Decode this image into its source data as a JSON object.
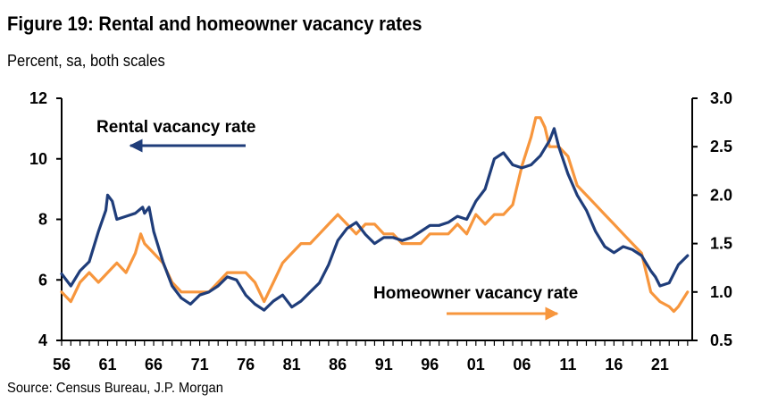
{
  "title": "Figure 19: Rental and homeowner vacancy rates",
  "subtitle": "Percent, sa, both scales",
  "source": "Source: Census Bureau, J.P. Morgan",
  "colors": {
    "rental": "#1f3d7a",
    "homeowner": "#f7963d"
  },
  "chart_data": {
    "type": "line",
    "title": "Figure 19: Rental and homeowner vacancy rates",
    "subtitle": "Percent, sa, both scales",
    "x_tick_labels": [
      "56",
      "61",
      "66",
      "71",
      "76",
      "81",
      "86",
      "91",
      "96",
      "01",
      "06",
      "11",
      "16",
      "21"
    ],
    "x_tick_years": [
      1956,
      1961,
      1966,
      1971,
      1976,
      1981,
      1986,
      1991,
      1996,
      2001,
      2006,
      2011,
      2016,
      2021
    ],
    "xlim": [
      1956,
      2024.5
    ],
    "y_left": {
      "lim": [
        4,
        12
      ],
      "ticks": [
        4,
        6,
        8,
        10,
        12
      ]
    },
    "y_right": {
      "lim": [
        0.5,
        3.0
      ],
      "ticks": [
        "0.5",
        "1.0",
        "1.5",
        "2.0",
        "2.5",
        "3.0"
      ]
    },
    "annotations": [
      {
        "text": "Rental vacancy rate",
        "series": "Rental vacancy rate",
        "arrow": "left"
      },
      {
        "text": "Homeowner vacancy rate",
        "series": "Homeowner vacancy rate",
        "arrow": "right"
      }
    ],
    "series": [
      {
        "name": "Rental vacancy rate",
        "axis": "left",
        "x": [
          1956,
          1957,
          1958,
          1959,
          1960,
          1960.8,
          1961,
          1961.5,
          1962,
          1963,
          1964,
          1964.8,
          1965,
          1965.5,
          1966,
          1967,
          1968,
          1969,
          1970,
          1971,
          1972,
          1973,
          1974,
          1975,
          1976,
          1977,
          1978,
          1979,
          1980,
          1981,
          1982,
          1983,
          1984,
          1985,
          1986,
          1987,
          1988,
          1989,
          1990,
          1991,
          1992,
          1993,
          1994,
          1995,
          1996,
          1997,
          1998,
          1999,
          2000,
          2001,
          2002,
          2003,
          2004,
          2005,
          2006,
          2007,
          2008,
          2009,
          2009.5,
          2010,
          2011,
          2012,
          2013,
          2014,
          2015,
          2016,
          2017,
          2018,
          2019,
          2020,
          2020.5,
          2021,
          2022,
          2023,
          2024
        ],
        "values": [
          6.2,
          5.8,
          6.3,
          6.6,
          7.6,
          8.3,
          8.8,
          8.6,
          8.0,
          8.1,
          8.2,
          8.4,
          8.2,
          8.4,
          7.6,
          6.6,
          5.8,
          5.4,
          5.2,
          5.5,
          5.6,
          5.8,
          6.1,
          6.0,
          5.5,
          5.2,
          5.0,
          5.3,
          5.5,
          5.1,
          5.3,
          5.6,
          5.9,
          6.5,
          7.3,
          7.7,
          7.9,
          7.5,
          7.2,
          7.4,
          7.4,
          7.3,
          7.4,
          7.6,
          7.8,
          7.8,
          7.9,
          8.1,
          8.0,
          8.6,
          9.0,
          10.0,
          10.2,
          9.8,
          9.7,
          9.8,
          10.1,
          10.6,
          11.0,
          10.4,
          9.5,
          8.8,
          8.3,
          7.6,
          7.1,
          6.9,
          7.1,
          7.0,
          6.8,
          6.3,
          6.1,
          5.8,
          5.9,
          6.5,
          6.8
        ]
      },
      {
        "name": "Homeowner vacancy rate",
        "axis": "right",
        "x": [
          1956,
          1957,
          1958,
          1959,
          1960,
          1961,
          1962,
          1963,
          1964,
          1964.6,
          1965,
          1966,
          1967,
          1968,
          1969,
          1970,
          1971,
          1972,
          1973,
          1974,
          1975,
          1976,
          1977,
          1978,
          1979,
          1980,
          1981,
          1982,
          1983,
          1984,
          1985,
          1986,
          1987,
          1988,
          1989,
          1990,
          1991,
          1992,
          1993,
          1994,
          1995,
          1996,
          1997,
          1998,
          1999,
          2000,
          2001,
          2002,
          2003,
          2004,
          2005,
          2006,
          2007,
          2007.5,
          2008,
          2008.5,
          2009,
          2010,
          2011,
          2012,
          2013,
          2014,
          2015,
          2016,
          2017,
          2018,
          2019,
          2020,
          2021,
          2022,
          2022.5,
          2023,
          2024
        ],
        "values": [
          1.0,
          0.9,
          1.1,
          1.2,
          1.1,
          1.2,
          1.3,
          1.2,
          1.4,
          1.6,
          1.5,
          1.4,
          1.3,
          1.1,
          1.0,
          1.0,
          1.0,
          1.0,
          1.1,
          1.2,
          1.2,
          1.2,
          1.1,
          0.9,
          1.1,
          1.3,
          1.4,
          1.5,
          1.5,
          1.6,
          1.7,
          1.8,
          1.7,
          1.6,
          1.7,
          1.7,
          1.6,
          1.6,
          1.5,
          1.5,
          1.5,
          1.6,
          1.6,
          1.6,
          1.7,
          1.6,
          1.8,
          1.7,
          1.8,
          1.8,
          1.9,
          2.3,
          2.6,
          2.8,
          2.8,
          2.7,
          2.5,
          2.5,
          2.4,
          2.1,
          2.0,
          1.9,
          1.8,
          1.7,
          1.6,
          1.5,
          1.4,
          1.0,
          0.9,
          0.85,
          0.8,
          0.85,
          1.0
        ]
      }
    ]
  }
}
